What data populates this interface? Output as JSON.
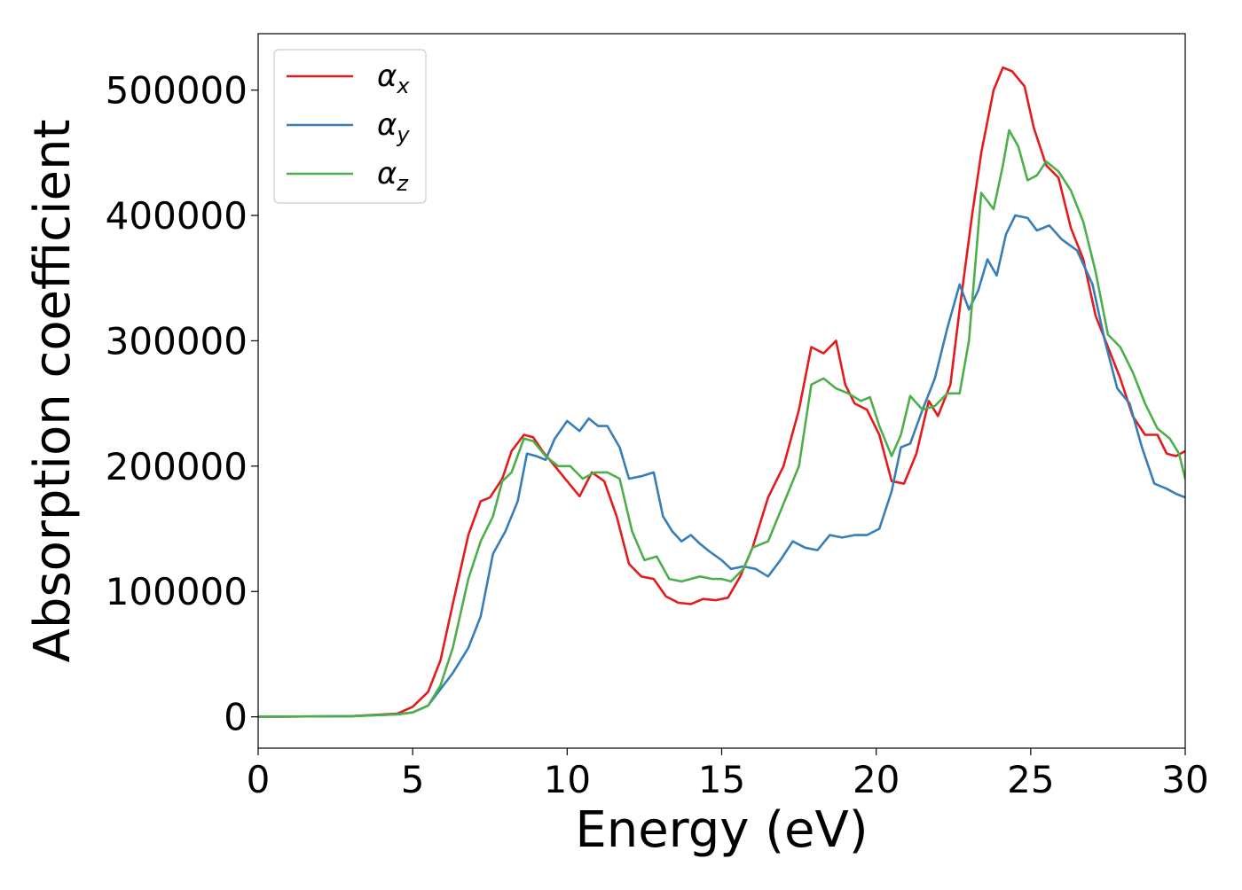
{
  "chart_data": {
    "type": "line",
    "title": "",
    "xlabel": "Energy (eV)",
    "ylabel": "Absorption coefficient",
    "xlim": [
      0,
      30
    ],
    "ylim": [
      -25000,
      545000
    ],
    "xticks": [
      0,
      5,
      10,
      15,
      20,
      25,
      30
    ],
    "xtick_labels": [
      "0",
      "5",
      "10",
      "15",
      "20",
      "25",
      "30"
    ],
    "yticks": [
      0,
      100000,
      200000,
      300000,
      400000,
      500000
    ],
    "ytick_labels": [
      "0",
      "100000",
      "200000",
      "300000",
      "400000",
      "500000"
    ],
    "grid": false,
    "legend_position": "top-left",
    "series": [
      {
        "name": "α",
        "subscript": "x",
        "color": "#e41a1c",
        "x": [
          0,
          3,
          4.5,
          5,
          5.5,
          5.9,
          6.3,
          6.8,
          7.2,
          7.5,
          7.9,
          8.2,
          8.6,
          8.9,
          9.2,
          9.6,
          10.1,
          10.4,
          10.8,
          11.2,
          11.6,
          12.0,
          12.4,
          12.8,
          13.2,
          13.6,
          14.0,
          14.4,
          14.8,
          15.2,
          15.6,
          16.0,
          16.5,
          17.0,
          17.5,
          17.9,
          18.3,
          18.7,
          19.0,
          19.3,
          19.7,
          20.1,
          20.5,
          20.9,
          21.3,
          21.7,
          22.0,
          22.4,
          22.7,
          23.1,
          23.4,
          23.8,
          24.1,
          24.4,
          24.8,
          25.1,
          25.5,
          25.9,
          26.3,
          26.7,
          27.1,
          27.5,
          27.9,
          28.3,
          28.7,
          29.1,
          29.4,
          29.7,
          30.0
        ],
        "values": [
          0,
          500,
          2500,
          8000,
          20000,
          45000,
          90000,
          145000,
          172000,
          175000,
          190000,
          212000,
          225000,
          223000,
          212000,
          200000,
          185000,
          176000,
          195000,
          188000,
          160000,
          122000,
          112000,
          110000,
          96000,
          91000,
          90000,
          94000,
          93000,
          95000,
          112000,
          135000,
          175000,
          200000,
          245000,
          295000,
          290000,
          300000,
          265000,
          250000,
          245000,
          225000,
          188000,
          186000,
          210000,
          252000,
          240000,
          265000,
          325000,
          400000,
          450000,
          500000,
          518000,
          515000,
          503000,
          470000,
          440000,
          430000,
          390000,
          365000,
          320000,
          295000,
          270000,
          240000,
          225000,
          225000,
          210000,
          208000,
          212000
        ]
      },
      {
        "name": "α",
        "subscript": "y",
        "color": "#377eb8",
        "x": [
          0,
          3,
          4.5,
          5,
          5.5,
          5.9,
          6.3,
          6.8,
          7.2,
          7.6,
          8.0,
          8.4,
          8.7,
          9.0,
          9.3,
          9.6,
          10.0,
          10.4,
          10.7,
          11.0,
          11.3,
          11.7,
          12.0,
          12.4,
          12.8,
          13.1,
          13.4,
          13.7,
          14.0,
          14.3,
          14.6,
          15.0,
          15.3,
          15.7,
          16.1,
          16.5,
          16.9,
          17.3,
          17.7,
          18.1,
          18.5,
          18.9,
          19.3,
          19.7,
          20.1,
          20.5,
          20.8,
          21.1,
          21.5,
          21.9,
          22.3,
          22.7,
          23.0,
          23.3,
          23.6,
          23.9,
          24.2,
          24.5,
          24.9,
          25.2,
          25.6,
          26.0,
          26.5,
          27.0,
          27.4,
          27.8,
          28.2,
          28.6,
          29.0,
          29.4,
          29.7,
          30.0
        ],
        "values": [
          0,
          500,
          2000,
          3500,
          9000,
          22000,
          35000,
          55000,
          80000,
          130000,
          148000,
          172000,
          210000,
          208000,
          205000,
          222000,
          236000,
          228000,
          238000,
          232000,
          232000,
          215000,
          190000,
          192000,
          195000,
          160000,
          148000,
          140000,
          145000,
          138000,
          132000,
          125000,
          118000,
          120000,
          118000,
          112000,
          125000,
          140000,
          135000,
          133000,
          145000,
          143000,
          145000,
          145000,
          150000,
          180000,
          215000,
          218000,
          245000,
          270000,
          310000,
          345000,
          325000,
          340000,
          365000,
          352000,
          385000,
          400000,
          398000,
          388000,
          392000,
          381000,
          372000,
          345000,
          300000,
          262000,
          250000,
          215000,
          186000,
          182000,
          178000,
          175000
        ]
      },
      {
        "name": "α",
        "subscript": "z",
        "color": "#4daf4a",
        "x": [
          0,
          3,
          4.5,
          5,
          5.5,
          5.9,
          6.3,
          6.8,
          7.2,
          7.6,
          7.9,
          8.2,
          8.6,
          8.9,
          9.3,
          9.7,
          10.1,
          10.5,
          10.9,
          11.3,
          11.7,
          12.1,
          12.5,
          12.9,
          13.3,
          13.7,
          14.0,
          14.3,
          14.7,
          15.0,
          15.3,
          15.7,
          16.0,
          16.5,
          17.0,
          17.5,
          17.9,
          18.3,
          18.7,
          19.1,
          19.5,
          19.8,
          20.1,
          20.5,
          20.8,
          21.1,
          21.5,
          21.9,
          22.3,
          22.7,
          23.0,
          23.4,
          23.8,
          24.1,
          24.3,
          24.6,
          24.9,
          25.2,
          25.5,
          25.9,
          26.3,
          26.7,
          27.1,
          27.5,
          27.9,
          28.3,
          28.7,
          29.1,
          29.5,
          29.8,
          30.0
        ],
        "values": [
          0,
          500,
          2000,
          3500,
          9000,
          25000,
          55000,
          110000,
          140000,
          160000,
          188000,
          195000,
          222000,
          220000,
          208000,
          200000,
          200000,
          190000,
          195000,
          195000,
          190000,
          148000,
          125000,
          128000,
          110000,
          108000,
          110000,
          112000,
          110000,
          110000,
          108000,
          118000,
          135000,
          140000,
          170000,
          200000,
          265000,
          270000,
          262000,
          258000,
          252000,
          255000,
          232000,
          208000,
          225000,
          256000,
          245000,
          248000,
          258000,
          258000,
          300000,
          418000,
          405000,
          440000,
          468000,
          455000,
          428000,
          432000,
          443000,
          435000,
          420000,
          395000,
          355000,
          305000,
          295000,
          275000,
          250000,
          230000,
          222000,
          210000,
          190000
        ]
      }
    ]
  }
}
